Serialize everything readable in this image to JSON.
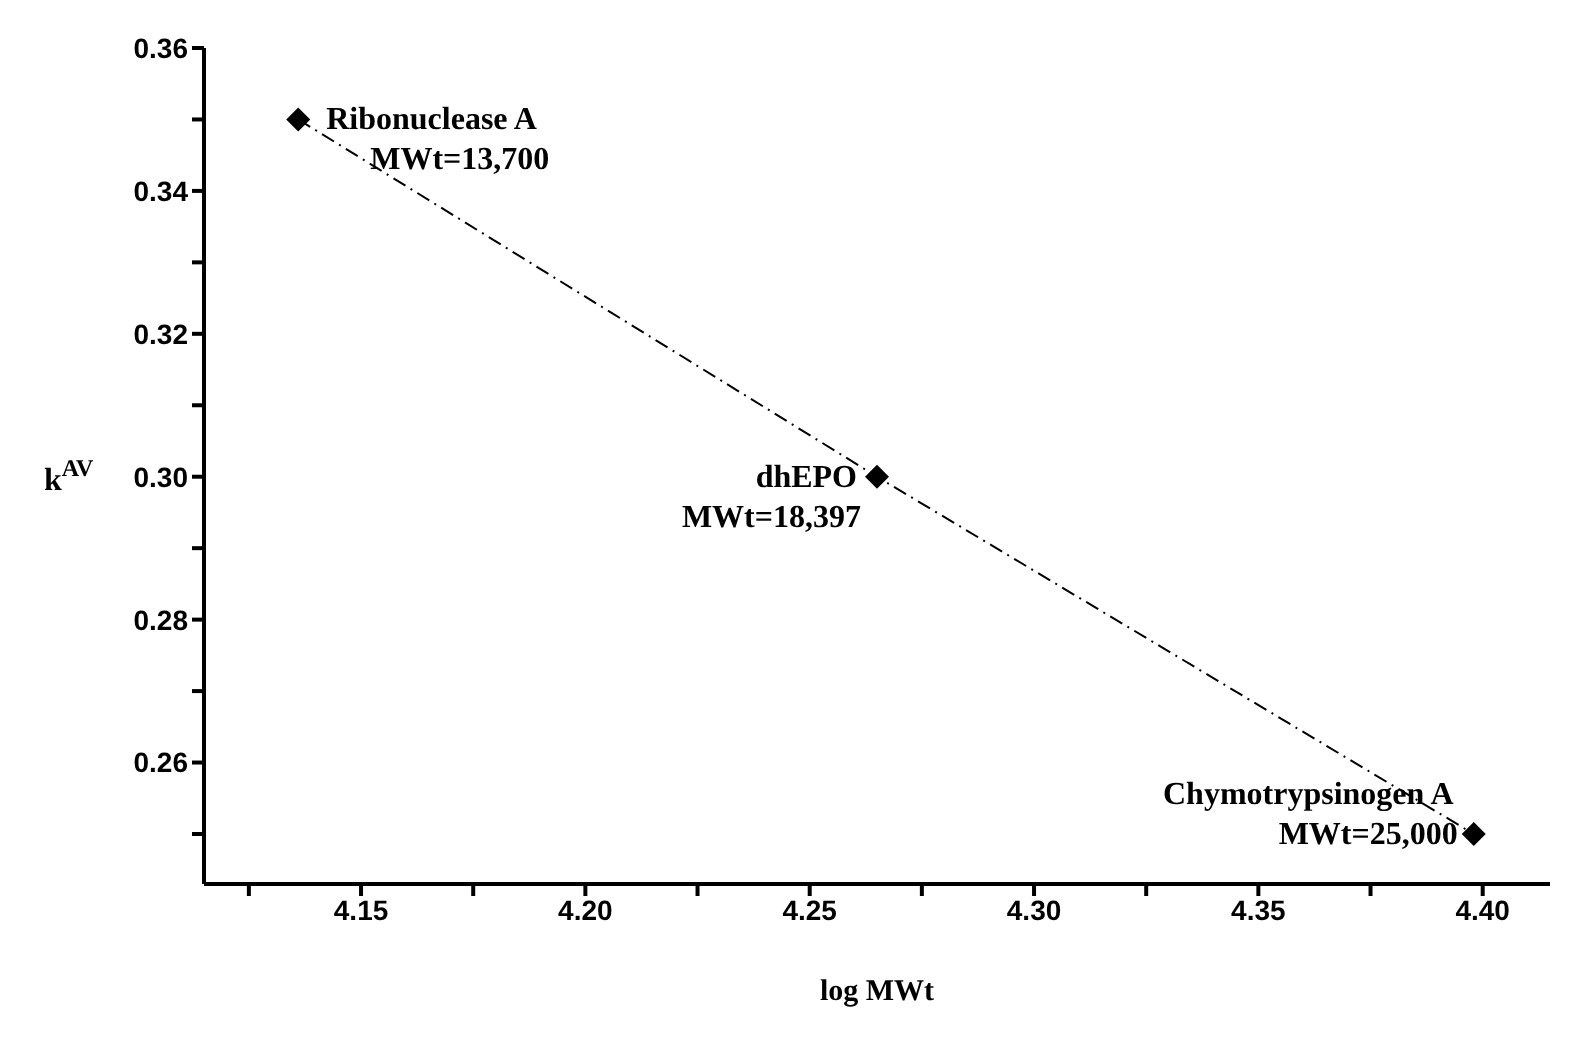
{
  "chart_data": {
    "type": "line",
    "xlabel": "log MWt",
    "ylabel": "k$^{AV}$",
    "x": [
      4.136,
      4.265,
      4.398
    ],
    "series": [
      {
        "color": "#000000",
        "values": [
          0.35,
          0.3,
          0.25
        ]
      }
    ],
    "marker": "diamond",
    "line_style": "dashed",
    "grid": false,
    "xlim": [
      4.115,
      4.415
    ],
    "xticks": [
      {
        "value": 4.125,
        "label": null
      },
      4.15,
      {
        "value": 4.175,
        "label": null
      },
      {
        "value": 4.2,
        "label": "4.20"
      },
      {
        "value": 4.225,
        "label": null
      },
      4.25,
      {
        "value": 4.275,
        "label": null
      },
      {
        "value": 4.3,
        "label": "4.30"
      },
      {
        "value": 4.325,
        "label": null
      },
      4.35,
      {
        "value": 4.375,
        "label": null
      },
      {
        "value": 4.4,
        "label": "4.40"
      }
    ],
    "ylim": [
      0.243,
      0.36
    ],
    "yticks": [
      {
        "value": 0.25,
        "label": null
      },
      0.26,
      {
        "value": 0.27,
        "label": null
      },
      0.28,
      {
        "value": 0.29,
        "label": null
      },
      {
        "value": 0.3,
        "label": "0.30"
      },
      {
        "value": 0.31,
        "label": null
      },
      0.32,
      {
        "value": 0.33,
        "label": null
      },
      0.34,
      {
        "value": 0.35,
        "label": null
      },
      0.36
    ],
    "annotations": [
      {
        "text": "Ribonuclease A",
        "x": 4.136,
        "y": 0.35
      },
      {
        "text": "MWt=13,700",
        "x": 4.136,
        "y": 0.35
      },
      {
        "text": "dhEPO",
        "x": 4.265,
        "y": 0.3
      },
      {
        "text": "MWt=18,397",
        "x": 4.265,
        "y": 0.3
      },
      {
        "text": "Chymotrypsinogen A",
        "x": 4.398,
        "y": 0.25
      },
      {
        "text": "MWt=25,000",
        "x": 4.398,
        "y": 0.25
      }
    ]
  }
}
